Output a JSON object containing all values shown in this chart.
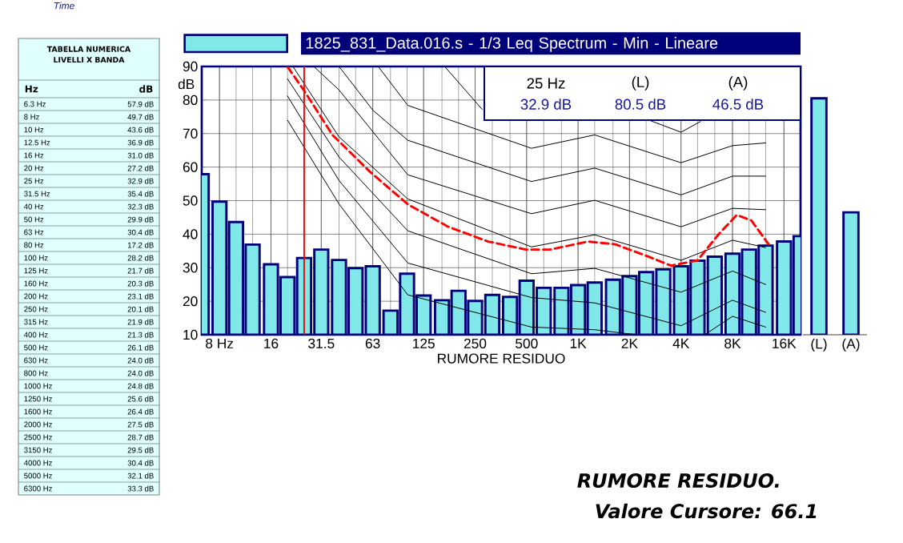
{
  "chart_data": [
    {
      "type": "other",
      "title": "TABELLA NUMERICA LIVELLI X BANDA",
      "xlabel": "Hz",
      "ylabel": "dB",
      "categories": [
        "6.3 Hz",
        "8 Hz",
        "10 Hz",
        "12.5 Hz",
        "16 Hz",
        "20 Hz",
        "25 Hz",
        "31.5 Hz",
        "40 Hz",
        "50 Hz",
        "63 Hz",
        "80 Hz",
        "100 Hz",
        "125 Hz",
        "160 Hz",
        "200 Hz",
        "250 Hz",
        "315 Hz",
        "400 Hz",
        "500 Hz",
        "630 Hz",
        "800 Hz",
        "1000 Hz",
        "1250 Hz",
        "1600 Hz",
        "2000 Hz",
        "2500 Hz",
        "3150 Hz",
        "4000 Hz",
        "5000 Hz",
        "6300 Hz"
      ],
      "annotations": [
        "57.9 dB",
        "49.7 dB",
        "43.6 dB",
        "36.9 dB",
        "31.0 dB",
        "27.2 dB",
        "32.9 dB",
        "35.4 dB",
        "32.3 dB",
        "29.9 dB",
        "30.4 dB",
        "17.2 dB",
        "28.2 dB",
        "21.7 dB",
        "20.3 dB",
        "23.1 dB",
        "20.1 dB",
        "21.9 dB",
        "21.3 dB",
        "26.1 dB",
        "24.0 dB",
        "24.0 dB",
        "24.8 dB",
        "25.6 dB",
        "26.4 dB",
        "27.5 dB",
        "28.7 dB",
        "29.5 dB",
        "30.4 dB",
        "32.1 dB",
        "33.3 dB"
      ]
    },
    {
      "type": "bar",
      "xlabel": "RUMORE RESIDUO",
      "ylabel": "dB",
      "log": "x",
      "grid": true,
      "legend": "top",
      "x": [
        6.3,
        8,
        10,
        12.5,
        16,
        20,
        25,
        31.5,
        40,
        50,
        63,
        80,
        100,
        125,
        160,
        200,
        250,
        315,
        400,
        500,
        630,
        800,
        1000,
        1250,
        1600,
        2000,
        2500,
        3150,
        4000,
        5000,
        6300,
        8000,
        10000,
        12500,
        16000,
        20000
      ],
      "xlim": [
        6.3,
        20000
      ],
      "xticks": [
        {
          "value": 8,
          "label": "8 Hz"
        },
        16,
        31.5,
        63,
        125,
        250,
        500,
        {
          "value": 1000,
          "label": "1K"
        },
        {
          "value": 2000,
          "label": "2K"
        },
        {
          "value": 4000,
          "label": "4K"
        },
        {
          "value": 8000,
          "label": "8K"
        },
        {
          "value": 16000,
          "label": "16K"
        }
      ],
      "ylim": [
        10,
        90
      ],
      "yticks": [
        10,
        20,
        30,
        40,
        50,
        60,
        70,
        80,
        90
      ],
      "series": [
        {
          "name": "1825_831_Data.016.s - 1/3 Leq Spectrum - Min - Lineare",
          "type": "bar",
          "color": "#80e8e8",
          "values": [
            57.9,
            49.7,
            43.6,
            36.9,
            31.0,
            27.2,
            32.9,
            35.4,
            32.3,
            29.9,
            30.4,
            17.2,
            28.2,
            21.7,
            20.3,
            23.1,
            20.1,
            21.9,
            21.3,
            26.1,
            24.0,
            24.0,
            24.8,
            25.6,
            26.4,
            27.5,
            28.7,
            29.5,
            30.4,
            32.1,
            33.3,
            34.2,
            35.4,
            36.6,
            37.8,
            39.4
          ]
        },
        {
          "type": "line",
          "color": "#000000",
          "x": [
            20,
            40,
            101,
            534,
            1250,
            2200,
            3000,
            5500,
            8000,
            12500
          ],
          "values": [
            74,
            49,
            21.9,
            12.3,
            11.5,
            10,
            null,
            10,
            15.5,
            12.3
          ]
        },
        {
          "type": "line",
          "color": "#000000",
          "x": [
            20,
            40,
            101,
            534,
            1250,
            4000,
            8000,
            12500
          ],
          "values": [
            81.2,
            56,
            31.4,
            21.1,
            19.5,
            12.7,
            20.3,
            16.7
          ]
        },
        {
          "type": "line",
          "color": "#000000",
          "x": [
            20,
            40,
            101,
            534,
            1250,
            4000,
            8000,
            12500
          ],
          "values": [
            86.3,
            63,
            41.0,
            28.2,
            29.8,
            22.7,
            29.0,
            25.0
          ]
        },
        {
          "type": "line",
          "color": "#000000",
          "x": [
            21.5,
            40,
            101,
            534,
            1250,
            4000,
            8000,
            12500
          ],
          "values": [
            90,
            69,
            50.5,
            36.2,
            39.8,
            32.2,
            38.2,
            36.0
          ]
        },
        {
          "type": "line",
          "color": "#000000",
          "x": [
            28.5,
            40,
            101,
            534,
            1250,
            4000,
            8000,
            12500
          ],
          "values": [
            90,
            83,
            57.7,
            46.1,
            50.1,
            42.2,
            47.7,
            47.3
          ]
        },
        {
          "type": "line",
          "color": "#000000",
          "x": [
            40,
            63,
            101,
            534,
            1250,
            4000,
            8000,
            12500
          ],
          "values": [
            90,
            77,
            68.0,
            55.7,
            59.7,
            51.7,
            57.3,
            57.3
          ]
        },
        {
          "type": "line",
          "color": "#000000",
          "x": [
            67.8,
            101,
            534,
            1250,
            4000,
            8000,
            12500
          ],
          "values": [
            90,
            78.4,
            65.6,
            69.6,
            61.3,
            66.4,
            67.2
          ]
        },
        {
          "type": "line",
          "color": "#000000",
          "x": [
            166,
            275,
            1000,
            2600,
            4000,
            5200
          ],
          "values": [
            90,
            77.2,
            null,
            74,
            70.4,
            73.6
          ]
        },
        {
          "type": "line",
          "color": "#ff0000",
          "line_style": "dashed",
          "x": [
            20,
            25,
            36.6,
            61,
            101,
            174,
            298,
            495,
            685,
            1143,
            1640,
            2432,
            3500,
            5000,
            6700,
            8470,
            10300,
            13000
          ],
          "values": [
            89.9,
            82.8,
            69.6,
            58.5,
            48.9,
            42.2,
            37.8,
            35.4,
            35.4,
            37.8,
            37.0,
            33.8,
            30.6,
            32.2,
            40.2,
            45.7,
            44.1,
            37.0
          ]
        }
      ],
      "ref_lines": [
        {
          "axis": "x",
          "value": 25,
          "color": "#ff0000"
        }
      ],
      "annotations": [
        "25 Hz",
        "(L)",
        "(A)",
        "32.9 dB",
        "80.5 dB",
        "46.5 dB",
        "RUMORE RESIDUO.",
        "Valore Cursore: 66.1",
        "Time"
      ]
    },
    {
      "type": "bar",
      "categories": [
        "(L)",
        "(A)"
      ],
      "values": [
        80.5,
        46.5
      ],
      "color": "#80e8e8",
      "ylim": [
        10,
        90
      ],
      "tick_labels": "x"
    }
  ]
}
